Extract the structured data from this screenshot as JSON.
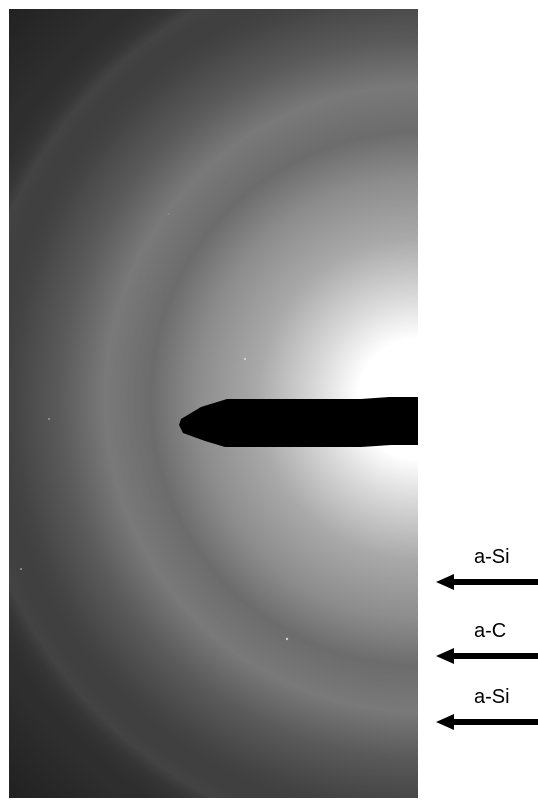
{
  "figure": {
    "labels": [
      {
        "id": "a-si-upper",
        "text": "a-Si"
      },
      {
        "id": "a-c",
        "text": "a-C"
      },
      {
        "id": "a-si-lower",
        "text": "a-Si"
      }
    ],
    "colors": {
      "background": "#ffffff",
      "pattern_dark": "#2a2a2a",
      "pattern_mid": "#7a7a7a",
      "pattern_bright": "#ffffff",
      "beam_stop": "#000000",
      "arrow": "#000000"
    }
  }
}
